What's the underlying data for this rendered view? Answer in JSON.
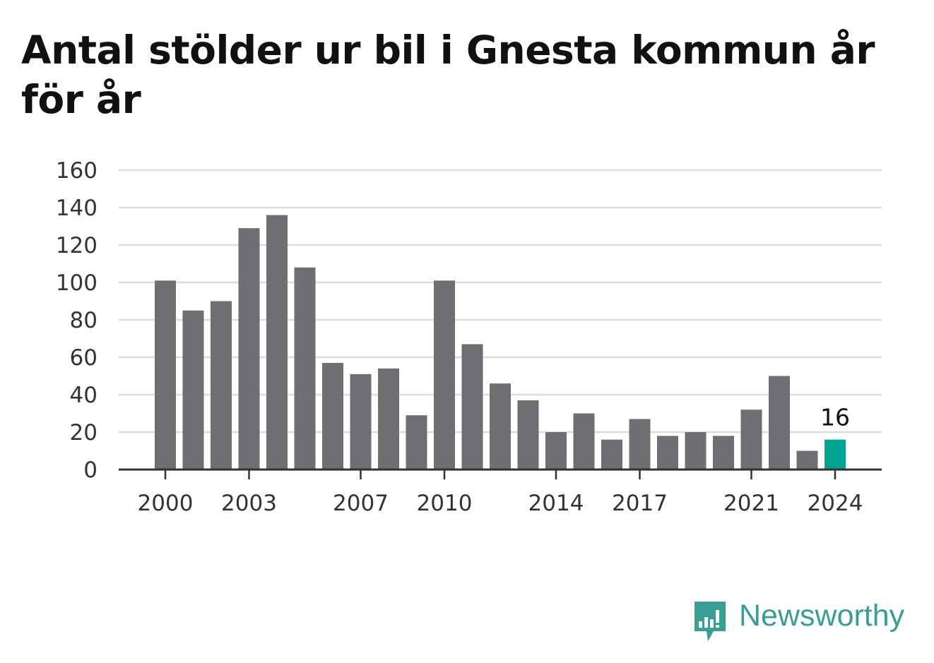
{
  "colors": {
    "bar": "#6e6e73",
    "highlight": "#00a394",
    "grid": "#dcdcdc",
    "axis": "#333333",
    "brand": "#3b9d94"
  },
  "brand": {
    "name": "Newsworthy",
    "icon": "newsworthy-logo-icon"
  },
  "chart_data": {
    "type": "bar",
    "title": "Antal stölder ur bil i Gnesta kommun år för år",
    "xlabel": "",
    "ylabel": "",
    "ylim": [
      0,
      160
    ],
    "yticks": [
      0,
      20,
      40,
      60,
      80,
      100,
      120,
      140,
      160
    ],
    "grid": true,
    "categories": [
      2000,
      2001,
      2002,
      2003,
      2004,
      2005,
      2006,
      2007,
      2008,
      2009,
      2010,
      2011,
      2012,
      2013,
      2014,
      2015,
      2016,
      2017,
      2018,
      2019,
      2020,
      2021,
      2022,
      2023,
      2024
    ],
    "xtick_labels": [
      "2000",
      "2003",
      "2007",
      "2010",
      "2014",
      "2017",
      "2021",
      "2024"
    ],
    "values": [
      101,
      85,
      90,
      129,
      136,
      108,
      57,
      51,
      54,
      29,
      101,
      67,
      46,
      37,
      20,
      30,
      16,
      27,
      18,
      20,
      18,
      32,
      50,
      10,
      16
    ],
    "highlight": {
      "category": 2024,
      "value": 16,
      "label": "16"
    }
  }
}
